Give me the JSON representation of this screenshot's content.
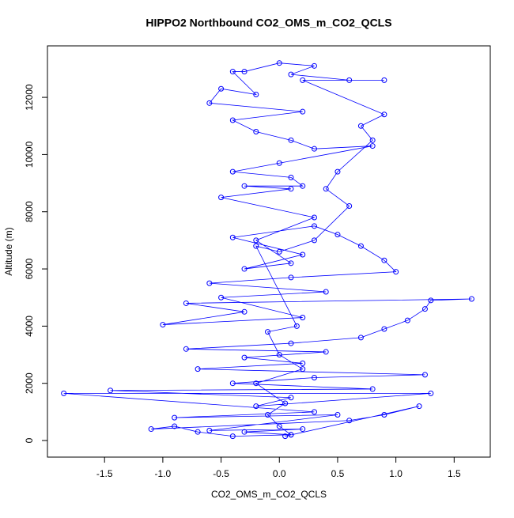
{
  "chart_data": {
    "type": "scatter",
    "lines": true,
    "title": "HIPPO2 Northbound CO2_OMS_m_CO2_QCLS",
    "x_label": "CO2_OMS_m_CO2_QCLS",
    "y_label": "Altitude (m)",
    "color": "#0000ff",
    "x": [
      0.1,
      -0.3,
      0.2,
      -0.6,
      0.5,
      -0.9,
      0.3,
      -1.85,
      1.3,
      -0.2,
      0.1,
      -1.45,
      0.8,
      -0.4,
      0.3,
      1.25,
      -0.7,
      0.2,
      -0.3,
      0.4,
      -0.8,
      0.1,
      0.7,
      0.9,
      1.1,
      1.25,
      1.3,
      1.65,
      -0.8,
      -0.3,
      -1.0,
      0.2,
      -0.5,
      0.4,
      -0.6,
      0.1,
      1.0,
      0.9,
      0.7,
      0.5,
      0.3,
      -0.4,
      0.2,
      -0.3,
      0.1,
      -0.2,
      0.3,
      -0.5,
      0.1,
      -0.3,
      0.2,
      0.1,
      -0.4,
      0.0,
      0.8,
      0.3,
      0.1,
      -0.2,
      -0.4,
      0.2,
      -0.6,
      -0.5,
      -0.2,
      -0.4,
      -0.3,
      0.0,
      0.3,
      0.1,
      0.6,
      0.9,
      0.2,
      0.9,
      0.7,
      0.8,
      0.5,
      0.4,
      0.6,
      0.3,
      0.0,
      -0.2,
      0.15,
      -0.1,
      0.0,
      0.2,
      -0.2,
      0.05,
      -0.1,
      0.0,
      0.1,
      -0.4,
      -0.7,
      -0.9,
      -1.1,
      0.6,
      0.9,
      1.2,
      0.05
    ],
    "values": [
      200,
      300,
      400,
      350,
      900,
      800,
      1000,
      1650,
      1650,
      1200,
      1500,
      1750,
      1800,
      2000,
      2200,
      2300,
      2500,
      2700,
      2900,
      3100,
      3200,
      3400,
      3600,
      3900,
      4200,
      4600,
      4900,
      4950,
      4800,
      4500,
      4050,
      4300,
      5000,
      5200,
      5500,
      5700,
      5900,
      6300,
      6800,
      7200,
      7500,
      7100,
      6500,
      6000,
      6200,
      7000,
      7800,
      8500,
      8800,
      8900,
      8900,
      9200,
      9400,
      9700,
      10300,
      10200,
      10500,
      10800,
      11200,
      11500,
      11800,
      12300,
      12100,
      12900,
      12900,
      13200,
      13100,
      12800,
      12600,
      12600,
      12600,
      11400,
      11000,
      10500,
      9400,
      8800,
      8200,
      7000,
      6600,
      6800,
      4000,
      3800,
      3000,
      2500,
      2000,
      1300,
      900,
      500,
      200,
      150,
      300,
      500,
      400,
      700,
      900,
      1200,
      150
    ],
    "xlim": [
      -1.99,
      1.81
    ],
    "ylim": [
      -580,
      13800
    ],
    "xticks": [
      -1.5,
      {
        "value": -1,
        "label": "-1.0"
      },
      -0.5,
      {
        "value": 0,
        "label": "0.0"
      },
      0.5,
      {
        "value": 1,
        "label": "1.0"
      },
      1.5
    ],
    "yticks": [
      0,
      2000,
      4000,
      6000,
      8000,
      10000,
      12000
    ]
  }
}
